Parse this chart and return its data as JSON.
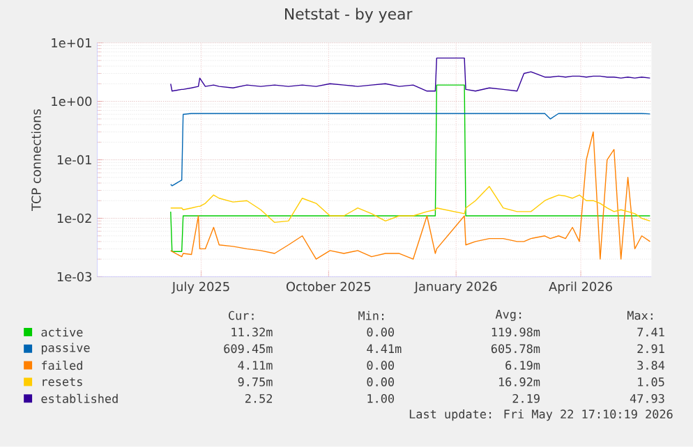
{
  "chart_data": {
    "type": "line",
    "title": "Netstat - by year",
    "ylabel": "TCP connections",
    "log": "y",
    "grid": true,
    "legend": "bottom",
    "xlim": [
      "2025-04-17",
      "2026-05-22"
    ],
    "xticks": [
      {
        "value": "2025-07-01",
        "label": "July 2025"
      },
      {
        "value": "2025-10-01",
        "label": "October 2025"
      },
      {
        "value": "2026-01-01",
        "label": "January 2026"
      },
      {
        "value": "2026-04-01",
        "label": "April 2026"
      }
    ],
    "ylim": [
      0.001,
      10
    ],
    "yticks": [
      {
        "value": 0.001,
        "label": "1e-03"
      },
      {
        "value": 0.01,
        "label": "1e-02"
      },
      {
        "value": 0.1,
        "label": "1e-01"
      },
      {
        "value": 1,
        "label": "1e+00"
      },
      {
        "value": 10,
        "label": "1e+01"
      }
    ],
    "x": [
      "2025-06-09",
      "2025-06-10",
      "2025-06-17",
      "2025-06-18",
      "2025-06-24",
      "2025-06-29",
      "2025-06-30",
      "2025-07-04",
      "2025-07-10",
      "2025-07-14",
      "2025-07-24",
      "2025-08-03",
      "2025-08-13",
      "2025-08-23",
      "2025-09-02",
      "2025-09-12",
      "2025-09-22",
      "2025-10-02",
      "2025-10-12",
      "2025-10-22",
      "2025-11-01",
      "2025-11-11",
      "2025-11-21",
      "2025-12-01",
      "2025-12-11",
      "2025-12-17",
      "2025-12-18",
      "2026-01-07",
      "2026-01-08",
      "2026-01-15",
      "2026-01-25",
      "2026-02-04",
      "2026-02-14",
      "2026-02-19",
      "2026-02-24",
      "2026-03-06",
      "2026-03-10",
      "2026-03-16",
      "2026-03-21",
      "2026-03-26",
      "2026-03-31",
      "2026-04-05",
      "2026-04-10",
      "2026-04-15",
      "2026-04-20",
      "2026-04-25",
      "2026-04-30",
      "2026-05-05",
      "2026-05-10",
      "2026-05-15",
      "2026-05-21"
    ],
    "series": [
      {
        "name": "active",
        "color": "#00cc00",
        "values": [
          0.013,
          0.0027,
          0.0027,
          0.011,
          0.011,
          0.011,
          0.011,
          0.011,
          0.011,
          0.011,
          0.011,
          0.011,
          0.011,
          0.011,
          0.011,
          0.011,
          0.011,
          0.011,
          0.011,
          0.011,
          0.011,
          0.011,
          0.011,
          0.011,
          0.011,
          0.011,
          1.9,
          1.9,
          0.011,
          0.011,
          0.011,
          0.011,
          0.011,
          0.011,
          0.011,
          0.011,
          0.011,
          0.011,
          0.011,
          0.011,
          0.011,
          0.011,
          0.011,
          0.011,
          0.011,
          0.011,
          0.011,
          0.011,
          0.011,
          0.011,
          0.011
        ]
      },
      {
        "name": "passive",
        "color": "#0066b3",
        "values": [
          0.038,
          0.036,
          0.045,
          0.6,
          0.62,
          0.62,
          0.62,
          0.62,
          0.62,
          0.62,
          0.62,
          0.62,
          0.62,
          0.62,
          0.62,
          0.62,
          0.62,
          0.62,
          0.62,
          0.62,
          0.62,
          0.62,
          0.62,
          0.62,
          0.62,
          0.62,
          0.62,
          0.62,
          0.62,
          0.62,
          0.62,
          0.62,
          0.62,
          0.62,
          0.62,
          0.62,
          0.5,
          0.62,
          0.62,
          0.62,
          0.62,
          0.62,
          0.62,
          0.62,
          0.62,
          0.62,
          0.62,
          0.62,
          0.62,
          0.62,
          0.61
        ]
      },
      {
        "name": "failed",
        "color": "#ff8000",
        "values": [
          0.0028,
          0.0027,
          0.0022,
          0.0025,
          0.0024,
          0.011,
          0.003,
          0.003,
          0.007,
          0.0035,
          0.0033,
          0.003,
          0.0028,
          0.0025,
          0.0035,
          0.005,
          0.002,
          0.0028,
          0.0025,
          0.0028,
          0.0022,
          0.0025,
          0.0025,
          0.002,
          0.011,
          0.0025,
          0.003,
          0.011,
          0.0035,
          0.004,
          0.0045,
          0.0045,
          0.004,
          0.004,
          0.0045,
          0.005,
          0.0045,
          0.005,
          0.0045,
          0.007,
          0.004,
          0.1,
          0.3,
          0.002,
          0.1,
          0.15,
          0.002,
          0.05,
          0.003,
          0.005,
          0.004
        ]
      },
      {
        "name": "resets",
        "color": "#ffcc00",
        "values": [
          0.015,
          0.015,
          0.015,
          0.014,
          0.015,
          0.016,
          0.016,
          0.018,
          0.025,
          0.022,
          0.019,
          0.02,
          0.014,
          0.0085,
          0.009,
          0.022,
          0.018,
          0.011,
          0.011,
          0.015,
          0.012,
          0.009,
          0.011,
          0.011,
          0.013,
          0.014,
          0.015,
          0.012,
          0.015,
          0.02,
          0.035,
          0.015,
          0.013,
          0.013,
          0.013,
          0.02,
          0.022,
          0.025,
          0.024,
          0.022,
          0.025,
          0.02,
          0.02,
          0.018,
          0.015,
          0.013,
          0.014,
          0.013,
          0.012,
          0.01,
          0.009
        ]
      },
      {
        "name": "established",
        "color": "#330099",
        "values": [
          2.0,
          1.5,
          1.6,
          1.6,
          1.7,
          1.8,
          2.5,
          1.8,
          1.9,
          1.8,
          1.7,
          1.9,
          1.8,
          1.9,
          1.8,
          1.9,
          1.8,
          2.0,
          1.9,
          1.8,
          1.9,
          2.0,
          1.8,
          1.9,
          1.5,
          1.5,
          5.5,
          5.5,
          1.6,
          1.5,
          1.7,
          1.6,
          1.5,
          3.0,
          3.2,
          2.6,
          2.6,
          2.7,
          2.6,
          2.7,
          2.7,
          2.6,
          2.7,
          2.7,
          2.6,
          2.6,
          2.5,
          2.6,
          2.5,
          2.6,
          2.5
        ]
      }
    ],
    "annotations": [
      "Cur:",
      "Min:",
      "Avg:",
      "Max:",
      "11.32m",
      "0.00",
      "119.98m",
      "7.41",
      "609.45m",
      "4.41m",
      "605.78m",
      "2.91",
      "4.11m",
      "0.00",
      "6.19m",
      "3.84",
      "9.75m",
      "0.00",
      "16.92m",
      "1.05",
      "2.52",
      "1.00",
      "2.19",
      "47.93",
      "Last update: Fri May 22 17:10:19 2026"
    ]
  }
}
